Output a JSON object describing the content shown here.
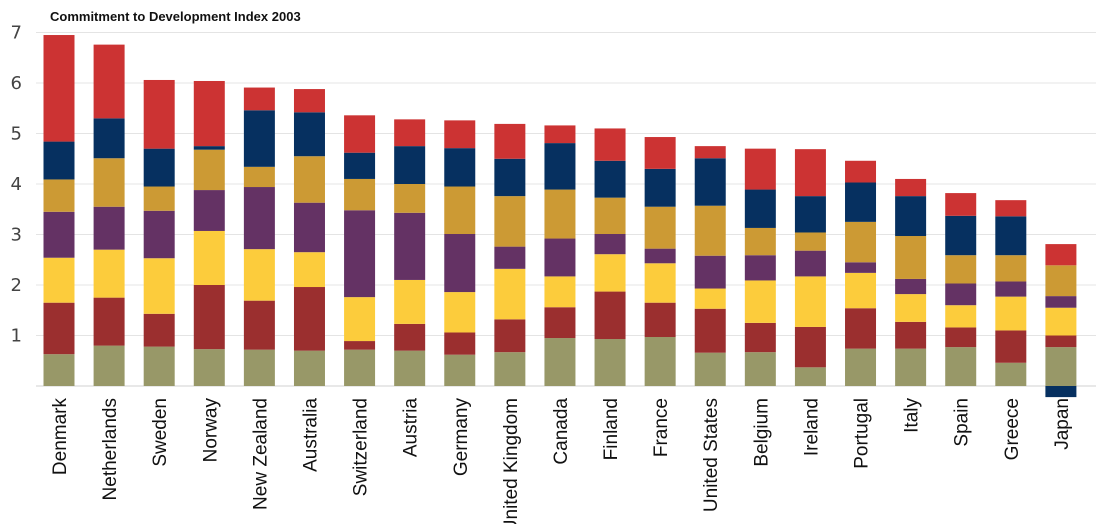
{
  "chart_data": {
    "type": "bar",
    "stacked": true,
    "title": "Commitment to Development Index 2003",
    "xlabel": "",
    "ylabel": "",
    "ylim": [
      -0.2,
      7
    ],
    "yticks": [
      1,
      2,
      3,
      4,
      5,
      6,
      7
    ],
    "grid": true,
    "legend": "none",
    "categories": [
      "Denmark",
      "Netherlands",
      "Sweden",
      "Norway",
      "New Zealand",
      "Australia",
      "Switzerland",
      "Austria",
      "Germany",
      "United Kingdom",
      "Canada",
      "Finland",
      "France",
      "United States",
      "Belgium",
      "Ireland",
      "Portugal",
      "Italy",
      "Spain",
      "Greece",
      "Japan"
    ],
    "series": [
      {
        "color": "#989868",
        "values": [
          0.63,
          0.8,
          0.78,
          0.73,
          0.72,
          0.7,
          0.72,
          0.7,
          0.62,
          0.67,
          0.95,
          0.93,
          0.97,
          0.66,
          0.67,
          0.37,
          0.74,
          0.74,
          0.77,
          0.46,
          0.77
        ]
      },
      {
        "color": "#9b2f2f",
        "values": [
          1.02,
          0.95,
          0.65,
          1.27,
          0.97,
          1.26,
          0.17,
          0.53,
          0.44,
          0.65,
          0.61,
          0.94,
          0.68,
          0.87,
          0.58,
          0.8,
          0.8,
          0.53,
          0.39,
          0.64,
          0.23
        ]
      },
      {
        "color": "#fccc3c",
        "values": [
          0.89,
          0.95,
          1.1,
          1.07,
          1.02,
          0.69,
          0.87,
          0.87,
          0.8,
          1.0,
          0.61,
          0.74,
          0.78,
          0.4,
          0.84,
          1.0,
          0.7,
          0.55,
          0.44,
          0.67,
          0.55
        ]
      },
      {
        "color": "#643264",
        "values": [
          0.91,
          0.85,
          0.94,
          0.81,
          1.23,
          0.98,
          1.72,
          1.33,
          1.15,
          0.44,
          0.75,
          0.4,
          0.29,
          0.65,
          0.5,
          0.51,
          0.21,
          0.3,
          0.43,
          0.3,
          0.23
        ]
      },
      {
        "color": "#cc9a34",
        "values": [
          0.64,
          0.96,
          0.48,
          0.8,
          0.4,
          0.92,
          0.62,
          0.57,
          0.94,
          1.0,
          0.97,
          0.72,
          0.83,
          0.99,
          0.54,
          0.36,
          0.8,
          0.85,
          0.56,
          0.52,
          0.61
        ]
      },
      {
        "color": "#063060",
        "values": [
          0.75,
          0.79,
          0.75,
          0.07,
          1.12,
          0.87,
          0.52,
          0.75,
          0.76,
          0.74,
          0.92,
          0.73,
          0.75,
          0.94,
          0.76,
          0.72,
          0.78,
          0.79,
          0.78,
          0.77,
          -0.22
        ]
      },
      {
        "color": "#cc3333",
        "values": [
          2.11,
          1.46,
          1.36,
          1.29,
          0.45,
          0.46,
          0.74,
          0.53,
          0.55,
          0.69,
          0.35,
          0.64,
          0.63,
          0.24,
          0.81,
          0.93,
          0.43,
          0.34,
          0.45,
          0.32,
          0.42
        ]
      }
    ]
  }
}
